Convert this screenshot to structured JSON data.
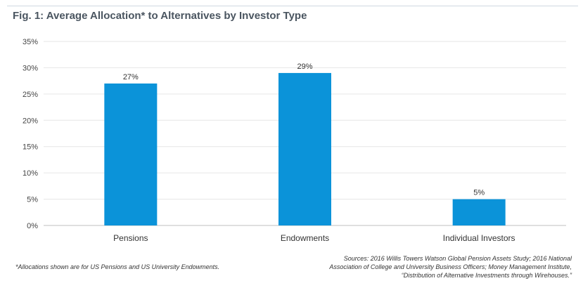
{
  "header": {
    "title": "Fig. 1: Average Allocation* to Alternatives by Investor Type"
  },
  "chart_data": {
    "type": "bar",
    "categories": [
      "Pensions",
      "Endowments",
      "Individual Investors"
    ],
    "values": [
      27,
      29,
      5
    ],
    "data_labels": [
      "27%",
      "29%",
      "5%"
    ],
    "yticks": [
      "0%",
      "5%",
      "10%",
      "15%",
      "20%",
      "25%",
      "30%",
      "35%"
    ],
    "ylim": [
      0,
      35
    ],
    "grid": true,
    "bar_color": "#0b93d9",
    "legend": "none"
  },
  "footer": {
    "footnote": "*Allocations shown are for US Pensions and US University Endowments.",
    "sources": [
      "Sources: 2016 Willis Towers Watson Global Pension Assets Study; 2016 National",
      "Association of College and University Business Officers; Money Management Institute,",
      "“Distribution of Alternative Investments through Wirehouses.”"
    ]
  }
}
